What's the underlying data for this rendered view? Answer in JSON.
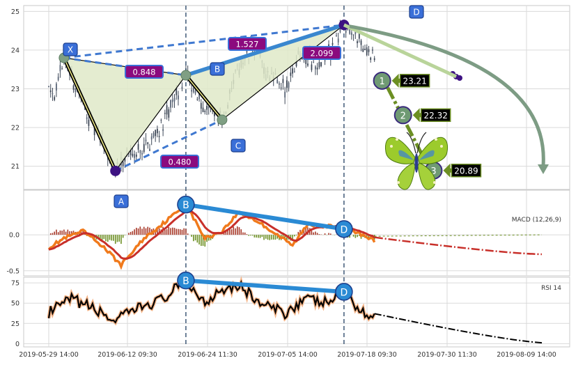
{
  "chart_data": [
    {
      "type": "candlestick",
      "title": "",
      "pattern": "Butterfly harmonic pattern (XABCD)",
      "ylim": [
        20.4,
        25.15
      ],
      "yticks": [
        21,
        22,
        23,
        24,
        25
      ],
      "x_tick_labels": [
        "2019-05-29 14:00",
        "2019-06-12 09:30",
        "2019-06-24 11:30",
        "2019-07-05 14:00",
        "2019-07-18 09:30",
        "2019-07-30 11:30",
        "2019-08-09 14:00"
      ],
      "points": [
        {
          "label": "X",
          "bar": 8,
          "price": 23.8
        },
        {
          "label": "A",
          "bar": 35,
          "price": 20.88
        },
        {
          "label": "B",
          "bar": 72,
          "price": 23.35
        },
        {
          "label": "C",
          "bar": 91,
          "price": 22.2
        },
        {
          "label": "D",
          "bar": 155,
          "price": 24.65
        }
      ],
      "ratios": [
        {
          "label": "0.848",
          "from": "XA",
          "to": "AB"
        },
        {
          "label": "0.480",
          "from": "AC"
        },
        {
          "label": "1.527",
          "from": "XD"
        },
        {
          "label": "2.099",
          "from": "BD"
        }
      ],
      "targets": [
        {
          "label": "1",
          "value": "23.21",
          "bar": 175,
          "price": 23.21
        },
        {
          "label": "2",
          "value": "22.32",
          "bar": 186,
          "price": 22.32
        },
        {
          "label": "3",
          "value": "20.89",
          "bar": 202,
          "price": 20.89
        }
      ],
      "colors": {
        "candle": "#3d4756",
        "triangle_fill": "#dfe9c8",
        "dashed": "#3f78d0",
        "solid": "#3a87cf",
        "label_box": "#8b0a7e",
        "point_box": "#3a6fd8",
        "target_circle": "#6f9a73",
        "target_arrow": "#6c8f23",
        "target_label_bg": "#000000",
        "dot": "#3d1282"
      }
    },
    {
      "type": "line",
      "title": "MACD (12,26,9)",
      "ylim": [
        -0.57,
        0.62
      ],
      "yticks": [
        "0.0",
        "-0.5"
      ],
      "divergence_points": [
        "B",
        "D"
      ],
      "series": [
        {
          "name": "MACD",
          "color": "#f07a1c"
        },
        {
          "name": "Signal",
          "color": "#c8302a"
        },
        {
          "name": "Histogram",
          "color": "#7f8e1e"
        }
      ]
    },
    {
      "type": "line",
      "title": "RSI 14",
      "ylim": [
        -4,
        82
      ],
      "yticks": [
        "75",
        "50",
        "25",
        "0"
      ],
      "divergence_points": [
        "B",
        "D"
      ],
      "series": [
        {
          "name": "RSI",
          "color": "#000000"
        }
      ]
    }
  ]
}
